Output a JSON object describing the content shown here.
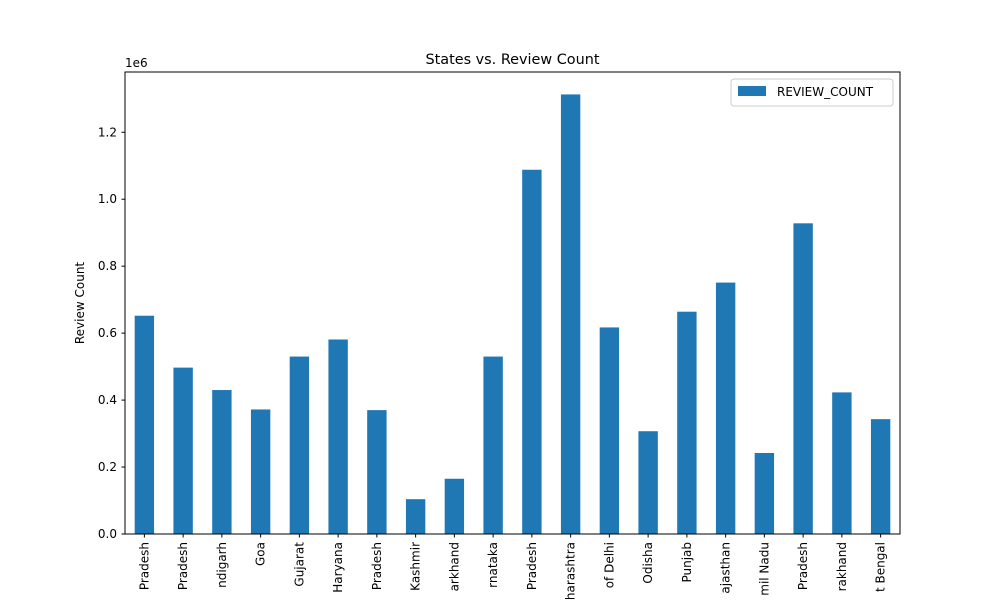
{
  "chart_data": {
    "type": "bar",
    "title": "States vs. Review Count",
    "xlabel": "",
    "ylabel": "Review Count",
    "y_offset_label": "1e6",
    "ylim": [
      0,
      1.38
    ],
    "yticks": [
      0.0,
      0.2,
      0.4,
      0.6,
      0.8,
      1.0,
      1.2
    ],
    "ytick_labels": [
      "0.0",
      "0.2",
      "0.4",
      "0.6",
      "0.8",
      "1.0",
      "1.2"
    ],
    "categories": [
      "Pradesh",
      "Pradesh",
      "ndigarh",
      "Goa",
      "Gujarat",
      "Haryana",
      "Pradesh",
      "Kashmir",
      "arkhand",
      "rnataka",
      "Pradesh",
      "harashtra",
      "of Delhi",
      "Odisha",
      "Punjab",
      "ajasthan",
      "mil Nadu",
      "Pradesh",
      "rakhand",
      "t Bengal"
    ],
    "series": [
      {
        "name": "REVIEW_COUNT",
        "color": "#1f77b4",
        "values": [
          0.652,
          0.497,
          0.43,
          0.372,
          0.53,
          0.581,
          0.37,
          0.104,
          0.165,
          0.53,
          1.088,
          1.313,
          0.617,
          0.307,
          0.664,
          0.751,
          0.242,
          0.928,
          0.423,
          0.343
        ]
      }
    ],
    "legend": "top-right",
    "grid": false
  }
}
